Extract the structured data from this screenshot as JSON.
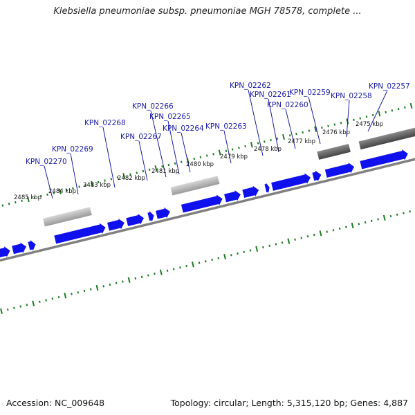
{
  "title": "Klebsiella pneumoniae subsp. pneumoniae MGH 78578, complete ...",
  "footer": {
    "accession": "Accession: NC_009648",
    "summary": "Topology: circular; Length: 5,315,120 bp; Genes: 4,887"
  },
  "colors": {
    "cds": "#1010ee",
    "rna_light": "#b8b8b8",
    "rna_dark": "#666666",
    "backbone": "#808080",
    "ticks": "#1e7a1e",
    "label": "#1a1aa6"
  },
  "kbp_ticks": [
    "2475 kbp",
    "2476 kbp",
    "2477 kbp",
    "2478 kbp",
    "2479 kbp",
    "2480 kbp",
    "2481 kbp",
    "2482 kbp",
    "2483 kbp",
    "2484 kbp",
    "2485 kbp"
  ],
  "gene_labels": [
    "KPN_02257",
    "KPN_02258",
    "KPN_02259",
    "KPN_02260",
    "KPN_02261",
    "KPN_02262",
    "KPN_02263",
    "KPN_02264",
    "KPN_02265",
    "KPN_02266",
    "KPN_02267",
    "KPN_02268",
    "KPN_02269",
    "KPN_02270"
  ]
}
